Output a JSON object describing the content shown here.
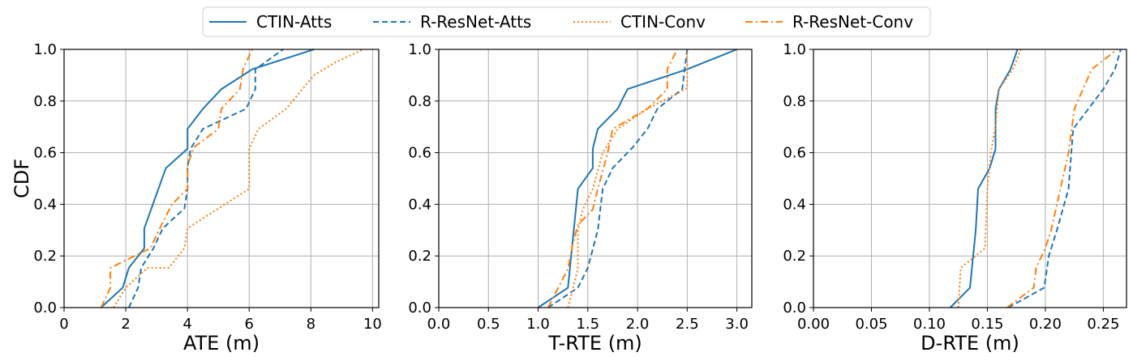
{
  "figure": {
    "colors": {
      "blue": "#1f77b4",
      "orange": "#ff7f0e",
      "grid": "#b0b0b0"
    },
    "legend": {
      "position": "top-center",
      "entries": [
        {
          "name": "CTIN-Atts",
          "color": "#1f77b4",
          "dash": "solid"
        },
        {
          "name": "R-ResNet-Atts",
          "color": "#1f77b4",
          "dash": "dashed"
        },
        {
          "name": "CTIN-Conv",
          "color": "#ff7f0e",
          "dash": "dotted"
        },
        {
          "name": "R-ResNet-Conv",
          "color": "#ff7f0e",
          "dash": "dashdot"
        }
      ]
    }
  },
  "chart_data": [
    {
      "type": "line",
      "xlabel": "ATE (m)",
      "ylabel": "CDF",
      "xlim": [
        0,
        10.2
      ],
      "ylim": [
        0,
        1.0
      ],
      "xticks": [
        "0",
        "2",
        "4",
        "6",
        "8",
        "10"
      ],
      "xtick_values": [
        0,
        2,
        4,
        6,
        8,
        10
      ],
      "yticks": [
        "0.0",
        "0.2",
        "0.4",
        "0.6",
        "0.8",
        "1.0"
      ],
      "ytick_values": [
        0,
        0.2,
        0.4,
        0.6,
        0.8,
        1.0
      ],
      "grid": true,
      "series": [
        {
          "name": "CTIN-Atts",
          "color": "#1f77b4",
          "dash": "solid",
          "points": [
            [
              1.2,
              0
            ],
            [
              1.9,
              0.077
            ],
            [
              2.1,
              0.154
            ],
            [
              2.6,
              0.23
            ],
            [
              2.6,
              0.307
            ],
            [
              3.3,
              0.54
            ],
            [
              4.0,
              0.615
            ],
            [
              4.0,
              0.692
            ],
            [
              4.5,
              0.77
            ],
            [
              5.1,
              0.846
            ],
            [
              6.1,
              0.923
            ],
            [
              8.1,
              1.0
            ]
          ]
        },
        {
          "name": "R-ResNet-Atts",
          "color": "#1f77b4",
          "dash": "dashed",
          "points": [
            [
              2.1,
              0
            ],
            [
              2.4,
              0.077
            ],
            [
              2.5,
              0.154
            ],
            [
              2.9,
              0.23
            ],
            [
              3.2,
              0.307
            ],
            [
              3.9,
              0.384
            ],
            [
              4.0,
              0.46
            ],
            [
              4.0,
              0.54
            ],
            [
              4.1,
              0.615
            ],
            [
              4.5,
              0.692
            ],
            [
              5.9,
              0.77
            ],
            [
              6.2,
              0.846
            ],
            [
              6.2,
              0.923
            ],
            [
              7.1,
              1.0
            ]
          ]
        },
        {
          "name": "CTIN-Conv",
          "color": "#ff7f0e",
          "dash": "dotted",
          "points": [
            [
              1.6,
              0
            ],
            [
              2.0,
              0.077
            ],
            [
              2.7,
              0.154
            ],
            [
              3.4,
              0.154
            ],
            [
              3.9,
              0.23
            ],
            [
              4.0,
              0.307
            ],
            [
              5.0,
              0.384
            ],
            [
              6.0,
              0.46
            ],
            [
              6.0,
              0.615
            ],
            [
              6.3,
              0.692
            ],
            [
              7.2,
              0.77
            ],
            [
              8.1,
              0.9
            ],
            [
              8.8,
              0.95
            ],
            [
              9.7,
              1.0
            ]
          ]
        },
        {
          "name": "R-ResNet-Conv",
          "color": "#ff7f0e",
          "dash": "dashdot",
          "points": [
            [
              1.2,
              0
            ],
            [
              1.5,
              0.077
            ],
            [
              1.5,
              0.154
            ],
            [
              2.8,
              0.23
            ],
            [
              3.2,
              0.33
            ],
            [
              3.5,
              0.4
            ],
            [
              4.0,
              0.46
            ],
            [
              4.0,
              0.55
            ],
            [
              4.2,
              0.62
            ],
            [
              5.0,
              0.692
            ],
            [
              5.1,
              0.77
            ],
            [
              5.7,
              0.846
            ],
            [
              5.8,
              0.923
            ],
            [
              6.1,
              1.0
            ]
          ]
        }
      ]
    },
    {
      "type": "line",
      "xlabel": "T-RTE (m)",
      "ylabel": "",
      "xlim": [
        0,
        3.15
      ],
      "ylim": [
        0,
        1.0
      ],
      "xticks": [
        "0.0",
        "0.5",
        "1.0",
        "1.5",
        "2.0",
        "2.5",
        "3.0"
      ],
      "xtick_values": [
        0,
        0.5,
        1.0,
        1.5,
        2.0,
        2.5,
        3.0
      ],
      "yticks": [
        "0.0",
        "0.2",
        "0.4",
        "0.6",
        "0.8",
        "1.0"
      ],
      "ytick_values": [
        0,
        0.2,
        0.4,
        0.6,
        0.8,
        1.0
      ],
      "grid": true,
      "series": [
        {
          "name": "CTIN-Atts",
          "color": "#1f77b4",
          "dash": "solid",
          "points": [
            [
              1.0,
              0
            ],
            [
              1.3,
              0.077
            ],
            [
              1.4,
              0.46
            ],
            [
              1.55,
              0.54
            ],
            [
              1.55,
              0.615
            ],
            [
              1.6,
              0.692
            ],
            [
              1.8,
              0.77
            ],
            [
              1.9,
              0.846
            ],
            [
              2.5,
              0.923
            ],
            [
              3.0,
              1.0
            ]
          ]
        },
        {
          "name": "R-ResNet-Atts",
          "color": "#1f77b4",
          "dash": "dashed",
          "points": [
            [
              1.1,
              0
            ],
            [
              1.4,
              0.077
            ],
            [
              1.5,
              0.154
            ],
            [
              1.6,
              0.3
            ],
            [
              1.65,
              0.46
            ],
            [
              1.75,
              0.54
            ],
            [
              1.95,
              0.62
            ],
            [
              2.1,
              0.692
            ],
            [
              2.2,
              0.77
            ],
            [
              2.45,
              0.846
            ],
            [
              2.5,
              1.0
            ]
          ]
        },
        {
          "name": "CTIN-Conv",
          "color": "#ff7f0e",
          "dash": "dotted",
          "points": [
            [
              1.3,
              0
            ],
            [
              1.4,
              0.15
            ],
            [
              1.4,
              0.3
            ],
            [
              1.45,
              0.38
            ],
            [
              1.55,
              0.46
            ],
            [
              1.65,
              0.6
            ],
            [
              1.8,
              0.692
            ],
            [
              2.1,
              0.77
            ],
            [
              2.5,
              0.85
            ],
            [
              2.5,
              0.923
            ],
            [
              2.5,
              1.0
            ]
          ]
        },
        {
          "name": "R-ResNet-Conv",
          "color": "#ff7f0e",
          "dash": "dashdot",
          "points": [
            [
              1.1,
              0
            ],
            [
              1.3,
              0.15
            ],
            [
              1.35,
              0.25
            ],
            [
              1.4,
              0.32
            ],
            [
              1.55,
              0.38
            ],
            [
              1.6,
              0.46
            ],
            [
              1.7,
              0.6
            ],
            [
              1.75,
              0.692
            ],
            [
              2.1,
              0.77
            ],
            [
              2.3,
              0.846
            ],
            [
              2.3,
              0.923
            ],
            [
              2.4,
              1.0
            ]
          ]
        }
      ]
    },
    {
      "type": "line",
      "xlabel": "D-RTE (m)",
      "ylabel": "",
      "xlim": [
        0,
        0.27
      ],
      "ylim": [
        0,
        1.0
      ],
      "xticks": [
        "0.00",
        "0.05",
        "0.10",
        "0.15",
        "0.20",
        "0.25"
      ],
      "xtick_values": [
        0,
        0.05,
        0.1,
        0.15,
        0.2,
        0.25
      ],
      "yticks": [
        "0.0",
        "0.2",
        "0.4",
        "0.6",
        "0.8",
        "1.0"
      ],
      "ytick_values": [
        0,
        0.2,
        0.4,
        0.6,
        0.8,
        1.0
      ],
      "grid": true,
      "series": [
        {
          "name": "CTIN-Atts",
          "color": "#1f77b4",
          "dash": "solid",
          "points": [
            [
              0.118,
              0
            ],
            [
              0.135,
              0.077
            ],
            [
              0.14,
              0.3
            ],
            [
              0.142,
              0.46
            ],
            [
              0.152,
              0.54
            ],
            [
              0.157,
              0.615
            ],
            [
              0.157,
              0.77
            ],
            [
              0.16,
              0.846
            ],
            [
              0.17,
              0.923
            ],
            [
              0.176,
              1.0
            ]
          ]
        },
        {
          "name": "R-ResNet-Atts",
          "color": "#1f77b4",
          "dash": "dashed",
          "points": [
            [
              0.168,
              0
            ],
            [
              0.199,
              0.077
            ],
            [
              0.203,
              0.2
            ],
            [
              0.21,
              0.3
            ],
            [
              0.22,
              0.46
            ],
            [
              0.224,
              0.692
            ],
            [
              0.25,
              0.846
            ],
            [
              0.26,
              0.923
            ],
            [
              0.265,
              1.0
            ]
          ]
        },
        {
          "name": "CTIN-Conv",
          "color": "#ff7f0e",
          "dash": "dotted",
          "points": [
            [
              0.125,
              0
            ],
            [
              0.127,
              0.154
            ],
            [
              0.148,
              0.23
            ],
            [
              0.15,
              0.46
            ],
            [
              0.153,
              0.6
            ],
            [
              0.157,
              0.7
            ],
            [
              0.16,
              0.846
            ],
            [
              0.172,
              0.923
            ],
            [
              0.179,
              1.0
            ]
          ]
        },
        {
          "name": "R-ResNet-Conv",
          "color": "#ff7f0e",
          "dash": "dashdot",
          "points": [
            [
              0.167,
              0
            ],
            [
              0.19,
              0.077
            ],
            [
              0.192,
              0.154
            ],
            [
              0.2,
              0.23
            ],
            [
              0.205,
              0.3
            ],
            [
              0.213,
              0.46
            ],
            [
              0.22,
              0.6
            ],
            [
              0.225,
              0.77
            ],
            [
              0.24,
              0.923
            ],
            [
              0.262,
              1.0
            ]
          ]
        }
      ]
    }
  ]
}
